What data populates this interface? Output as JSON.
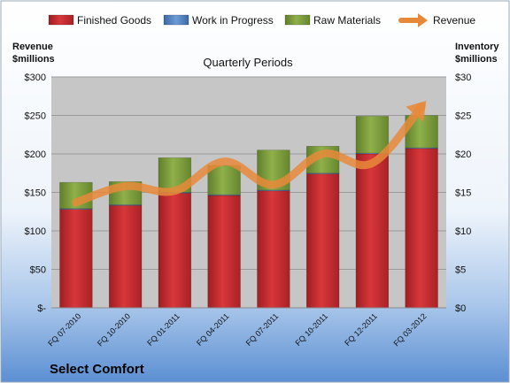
{
  "chart_data": {
    "type": "bar",
    "stacked": true,
    "title": "Quarterly Periods",
    "company": "Select Comfort",
    "categories": [
      "FQ 07-2010",
      "FQ 10-2010",
      "FQ 01-2011",
      "FQ 04-2011",
      "FQ 07-2011",
      "FQ 10-2011",
      "FQ 12-2011",
      "FQ 03-2012"
    ],
    "series": [
      {
        "name": "Finished Goods",
        "axis": "right",
        "color": "#C0282D",
        "values": [
          12.8,
          13.3,
          14.9,
          14.6,
          15.2,
          17.4,
          20.0,
          20.7
        ]
      },
      {
        "name": "Work in Progress",
        "axis": "right",
        "color": "#4F81BD",
        "values": [
          0.1,
          0.1,
          0.1,
          0.1,
          0.1,
          0.1,
          0.1,
          0.1
        ]
      },
      {
        "name": "Raw Materials",
        "axis": "right",
        "color": "#7A9A3C",
        "values": [
          3.4,
          3.0,
          4.5,
          3.8,
          5.2,
          3.5,
          4.8,
          4.2
        ]
      },
      {
        "name": "Revenue",
        "axis": "left",
        "type": "line",
        "color": "#E8893A",
        "values": [
          137,
          158,
          152,
          190,
          160,
          200,
          188,
          262
        ]
      }
    ],
    "left_axis": {
      "label_line1": "Revenue",
      "label_line2": "$millions",
      "ylim": [
        0,
        300
      ],
      "ticks": [
        "$-",
        "$50",
        "$100",
        "$150",
        "$200",
        "$250",
        "$300"
      ]
    },
    "right_axis": {
      "label_line1": "Inventory",
      "label_line2": "$millions",
      "ylim": [
        0,
        30
      ],
      "ticks": [
        "$0",
        "$5",
        "$10",
        "$15",
        "$20",
        "$25",
        "$30"
      ]
    },
    "legend": {
      "placement": "top"
    },
    "grid": true
  },
  "colors": {
    "plot_bg": "#C6C6C6",
    "bg_top": "#FFFFFF",
    "bg_bottom": "#5B8FD3"
  }
}
